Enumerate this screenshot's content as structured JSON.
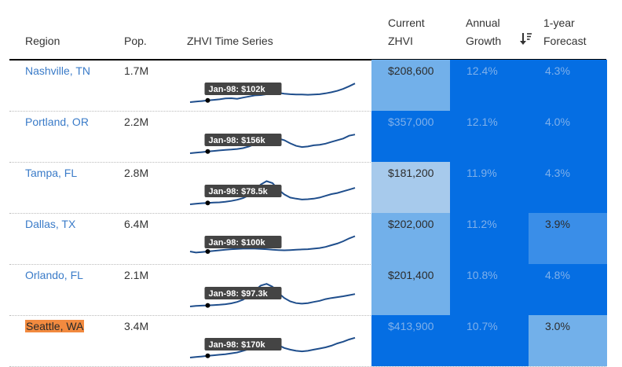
{
  "header": {
    "region": "Region",
    "pop": "Pop.",
    "series": "ZHVI Time Series",
    "zhvi_line1": "Current",
    "zhvi_line2": "ZHVI",
    "growth_line1": "Annual",
    "growth_line2": "Growth",
    "forecast_line1": "1-year",
    "forecast_line2": "Forecast"
  },
  "colors": {
    "dark": "#056ee3",
    "medium": "#3a8ee8",
    "light": "#72b0ea",
    "lightest": "#a7caec",
    "link": "#3a7bc8",
    "highlight": "#f28a3f"
  },
  "rows": [
    {
      "region": "Nashville, TN",
      "pop": "1.7M",
      "tooltip": "Jan-98: $102k",
      "zhvi": "$208,600",
      "growth": "12.4%",
      "forecast": "4.3%",
      "zhvi_shade": "light",
      "growth_shade": "dark",
      "forecast_shade": "dark",
      "highlight": false,
      "series": [
        0.0,
        0.02,
        0.04,
        0.06,
        0.08,
        0.1,
        0.13,
        0.14,
        0.12,
        0.16,
        0.2,
        0.24,
        0.25,
        0.28,
        0.3,
        0.33,
        0.3,
        0.28,
        0.27,
        0.27,
        0.26,
        0.27,
        0.28,
        0.31,
        0.35,
        0.4,
        0.47,
        0.56,
        0.66
      ]
    },
    {
      "region": "Portland, OR",
      "pop": "2.2M",
      "tooltip": "Jan-98: $156k",
      "zhvi": "$357,000",
      "growth": "12.1%",
      "forecast": "4.0%",
      "zhvi_shade": "dark",
      "growth_shade": "dark",
      "forecast_shade": "dark",
      "highlight": false,
      "series": [
        0.0,
        0.02,
        0.04,
        0.06,
        0.08,
        0.1,
        0.12,
        0.13,
        0.15,
        0.18,
        0.24,
        0.32,
        0.4,
        0.46,
        0.5,
        0.52,
        0.46,
        0.35,
        0.26,
        0.22,
        0.24,
        0.28,
        0.3,
        0.34,
        0.4,
        0.46,
        0.52,
        0.62,
        0.66
      ]
    },
    {
      "region": "Tampa, FL",
      "pop": "2.8M",
      "tooltip": "Jan-98: $78.5k",
      "zhvi": "$181,200",
      "growth": "11.9%",
      "forecast": "4.3%",
      "zhvi_shade": "lightest",
      "growth_shade": "dark",
      "forecast_shade": "dark",
      "highlight": false,
      "series": [
        0.0,
        0.02,
        0.04,
        0.05,
        0.06,
        0.07,
        0.09,
        0.12,
        0.16,
        0.22,
        0.32,
        0.5,
        0.7,
        0.82,
        0.75,
        0.52,
        0.35,
        0.24,
        0.2,
        0.17,
        0.18,
        0.2,
        0.24,
        0.3,
        0.36,
        0.4,
        0.46,
        0.52,
        0.58
      ]
    },
    {
      "region": "Dallas, TX",
      "pop": "6.4M",
      "tooltip": "Jan-98: $100k",
      "zhvi": "$202,000",
      "growth": "11.2%",
      "forecast": "3.9%",
      "zhvi_shade": "light",
      "growth_shade": "dark",
      "forecast_shade": "medium",
      "highlight": false,
      "series": [
        0.14,
        0.1,
        0.12,
        0.14,
        0.16,
        0.18,
        0.2,
        0.22,
        0.23,
        0.24,
        0.24,
        0.24,
        0.23,
        0.22,
        0.2,
        0.19,
        0.18,
        0.19,
        0.2,
        0.21,
        0.22,
        0.24,
        0.26,
        0.3,
        0.36,
        0.42,
        0.5,
        0.6,
        0.68
      ]
    },
    {
      "region": "Orlando, FL",
      "pop": "2.1M",
      "tooltip": "Jan-98: $97.3k",
      "zhvi": "$201,400",
      "growth": "10.8%",
      "forecast": "4.8%",
      "zhvi_shade": "light",
      "growth_shade": "dark",
      "forecast_shade": "dark",
      "highlight": false,
      "series": [
        0.0,
        0.02,
        0.03,
        0.04,
        0.05,
        0.06,
        0.08,
        0.11,
        0.16,
        0.24,
        0.38,
        0.56,
        0.74,
        0.8,
        0.7,
        0.48,
        0.3,
        0.18,
        0.12,
        0.1,
        0.12,
        0.16,
        0.2,
        0.26,
        0.3,
        0.33,
        0.36,
        0.4,
        0.44
      ]
    },
    {
      "region": "Seattle, WA",
      "pop": "3.4M",
      "tooltip": "Jan-98: $170k",
      "zhvi": "$413,900",
      "growth": "10.7%",
      "forecast": "3.0%",
      "zhvi_shade": "dark",
      "growth_shade": "dark",
      "forecast_shade": "light",
      "highlight": true,
      "series": [
        0.0,
        0.02,
        0.04,
        0.06,
        0.08,
        0.1,
        0.12,
        0.15,
        0.18,
        0.24,
        0.3,
        0.36,
        0.42,
        0.46,
        0.48,
        0.44,
        0.34,
        0.28,
        0.24,
        0.22,
        0.24,
        0.28,
        0.32,
        0.36,
        0.42,
        0.5,
        0.56,
        0.64,
        0.7
      ]
    }
  ]
}
